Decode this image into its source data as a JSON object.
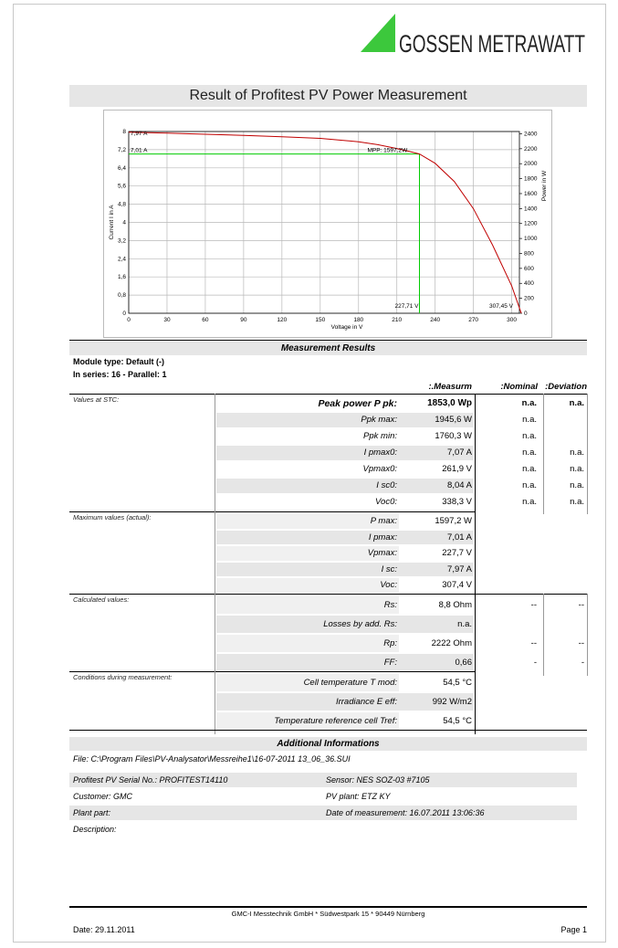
{
  "logo": {
    "text": "GOSSEN METRAWATT"
  },
  "title": "Result of Profitest PV Power Measurement",
  "chart_data": {
    "type": "line",
    "xlabel": "Voltage in V",
    "ylabel": "Current I in A",
    "y2label": "Power in W",
    "x": [
      0,
      30,
      60,
      90,
      120,
      150,
      180,
      195,
      210,
      220,
      227.71,
      240,
      255,
      270,
      285,
      300,
      307.45
    ],
    "series": [
      {
        "color": "#c00000",
        "values": [
          7.97,
          7.93,
          7.88,
          7.83,
          7.77,
          7.7,
          7.55,
          7.42,
          7.25,
          7.12,
          7.01,
          6.6,
          5.8,
          4.6,
          3.0,
          1.2,
          0
        ]
      }
    ],
    "mpp": {
      "voltage": 227.71,
      "current": 7.01,
      "color": "#00cc00"
    },
    "annotations": [
      "7,97 A",
      "7,01 A",
      "MPP: 1597,2W",
      "227,71 V",
      "307,45 V"
    ],
    "xlim": [
      0,
      306
    ],
    "xticks": [
      0,
      30,
      60,
      90,
      120,
      150,
      180,
      210,
      240,
      270,
      300
    ],
    "ylim": [
      0,
      8
    ],
    "yticks": [
      0,
      {
        "value": 0.8,
        "label": "0,8"
      },
      {
        "value": 1.6,
        "label": "1,6"
      },
      {
        "value": 2.4,
        "label": "2,4"
      },
      {
        "value": 3.2,
        "label": "3,2"
      },
      4,
      {
        "value": 4.8,
        "label": "4,8"
      },
      {
        "value": 5.6,
        "label": "5,6"
      },
      {
        "value": 6.4,
        "label": "6,4"
      },
      {
        "value": 7.2,
        "label": "7,2"
      },
      8
    ],
    "y2lim": [
      0,
      2430
    ],
    "y2ticks": [
      0,
      200,
      400,
      600,
      800,
      1000,
      1200,
      1400,
      1600,
      1800,
      2000,
      2200,
      2400
    ],
    "grid": true
  },
  "results": {
    "heading": "Measurement Results",
    "module_type": "Module type: Default (-)",
    "in_series": "In series: 16  -  Parallel: 1",
    "columns": [
      "Measurm.:",
      "Nominal:",
      "Deviation:"
    ],
    "groups": [
      {
        "label": "Values at STC:",
        "rows": [
          {
            "label": "Peak power P pk:",
            "measured": "1853,0 Wp",
            "nominal": "n.a.",
            "deviation": "n.a."
          },
          {
            "label": "Ppk max:",
            "measured": "1945,6 W",
            "nominal": "n.a."
          },
          {
            "label": "Ppk min:",
            "measured": "1760,3 W",
            "nominal": "n.a."
          },
          {
            "label": "I pmax0:",
            "measured": "7,07 A",
            "nominal": "n.a.",
            "deviation": "n.a."
          },
          {
            "label": "Vpmax0:",
            "measured": "261,9 V",
            "nominal": "n.a.",
            "deviation": "n.a."
          },
          {
            "label": "I sc0:",
            "measured": "8,04 A",
            "nominal": "n.a.",
            "deviation": "n.a."
          },
          {
            "label": "Voc0:",
            "measured": "338,3 V",
            "nominal": "n.a.",
            "deviation": "n.a."
          }
        ]
      },
      {
        "label": "Maximum values (actual):",
        "rows": [
          {
            "label": "P max:",
            "measured": "1597,2 W"
          },
          {
            "label": "I pmax:",
            "measured": "7,01 A"
          },
          {
            "label": "Vpmax:",
            "measured": "227,7 V"
          },
          {
            "label": "I sc:",
            "measured": "7,97 A"
          },
          {
            "label": "Voc:",
            "measured": "307,4 V"
          }
        ]
      },
      {
        "label": "Calculated values:",
        "rows": [
          {
            "label": "Rs:",
            "measured": "8,8 Ohm",
            "nominal": "--",
            "deviation": "--"
          },
          {
            "label": "Losses by add. Rs:",
            "measured": "n.a."
          },
          {
            "label": "Rp:",
            "measured": "2222 Ohm",
            "nominal": "--",
            "deviation": "--"
          },
          {
            "label": "FF:",
            "measured": "0,66",
            "nominal": "-",
            "deviation": "-"
          }
        ]
      },
      {
        "label": "Conditions during measurement:",
        "rows": [
          {
            "label": "Cell temperature T mod:",
            "measured": "54,5 °C"
          },
          {
            "label": "Irradiance E eff:",
            "measured": "992 W/m2"
          },
          {
            "label": "Temperature reference cell Tref:",
            "measured": "54,5 °C"
          }
        ]
      }
    ]
  },
  "additional": {
    "heading": "Additional Informations",
    "file": "File: C:\\Program Files\\PV-Analysator\\Messreihe1\\16-07-2011  13_06_36.SUI",
    "rows": [
      [
        "Profitest PV Serial No.: PROFITEST14110",
        "Sensor: NES SOZ-03 #7105"
      ],
      [
        "Customer: GMC",
        "PV plant: ETZ KY"
      ],
      [
        "Plant part:",
        "Date of measurement: 16.07.2011  13:06:36"
      ]
    ],
    "description": "Description:"
  },
  "footer": {
    "company": "GMC-I Messtechnik GmbH  * Südwestpark 15 * 90449 Nürnberg",
    "date": "Date: 29.11.2011",
    "page": "Page 1"
  }
}
